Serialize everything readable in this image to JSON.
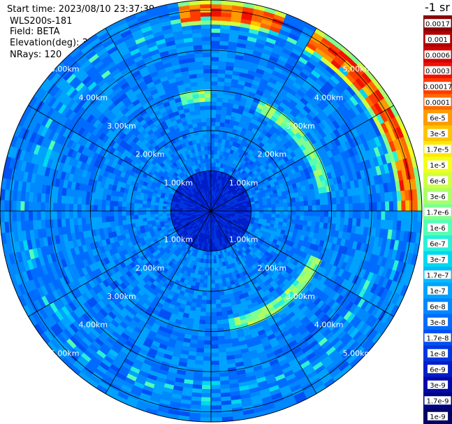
{
  "meta": {
    "start_time": "Start time: 2023/08/10 23:37:39",
    "instrument": "WLS200s-181",
    "field": "Field: BETA",
    "elevation": "Elevation(deg): 35.30",
    "nrays": "NRays: 120"
  },
  "chart_data": {
    "type": "heatmap",
    "projection": "polar-ppi",
    "nrays": 120,
    "range_rings_km": [
      1,
      2,
      3,
      4,
      5
    ],
    "range_labels": [
      "1.00km",
      "2.00km",
      "3.00km",
      "4.00km",
      "5.00km"
    ],
    "max_range_km": 5.25,
    "spoke_step_deg": 30,
    "units_label": "-1 sr",
    "colorbar": {
      "labels": [
        "0.0017",
        "0.001",
        "0.0006",
        "0.0003",
        "0.00017",
        "0.0001",
        "6e-5",
        "3e-5",
        "1.7e-5",
        "1e-5",
        "6e-6",
        "3e-6",
        "1.7e-6",
        "1e-6",
        "6e-7",
        "3e-7",
        "1.7e-7",
        "1e-7",
        "6e-8",
        "3e-8",
        "1.7e-8",
        "1e-8",
        "6e-9",
        "3e-9",
        "1.7e-9",
        "1e-9"
      ],
      "colors": [
        "#8a0000",
        "#b00000",
        "#d40000",
        "#f21000",
        "#ff3c00",
        "#ff6a00",
        "#ff9a00",
        "#ffc400",
        "#ffe800",
        "#f2ff1a",
        "#d0ff40",
        "#aaff66",
        "#80ff90",
        "#55ffb4",
        "#2af0d8",
        "#00d8f0",
        "#00bcff",
        "#00a2ff",
        "#0088ff",
        "#006cff",
        "#0050f4",
        "#0036e0",
        "#001ec8",
        "#000aa8",
        "#000088",
        "#000066"
      ]
    },
    "beta_profile": {
      "core_radius_km": 1.0,
      "core_level": 21.6,
      "bg_level": 18.2,
      "rings": [
        {
          "name": "inner-aerosol-ring",
          "radius_km": 2.9,
          "level": 11.5,
          "sectors_deg": [
            [
              115,
              170
            ],
            [
              25,
              80
            ],
            [
              345,
              360
            ]
          ]
        },
        {
          "name": "outer-cloud-ring",
          "radius_km": 4.95,
          "level": 4.2,
          "sectors_deg": [
            [
              -10,
              20
            ],
            [
              30,
              90
            ]
          ]
        }
      ]
    }
  }
}
